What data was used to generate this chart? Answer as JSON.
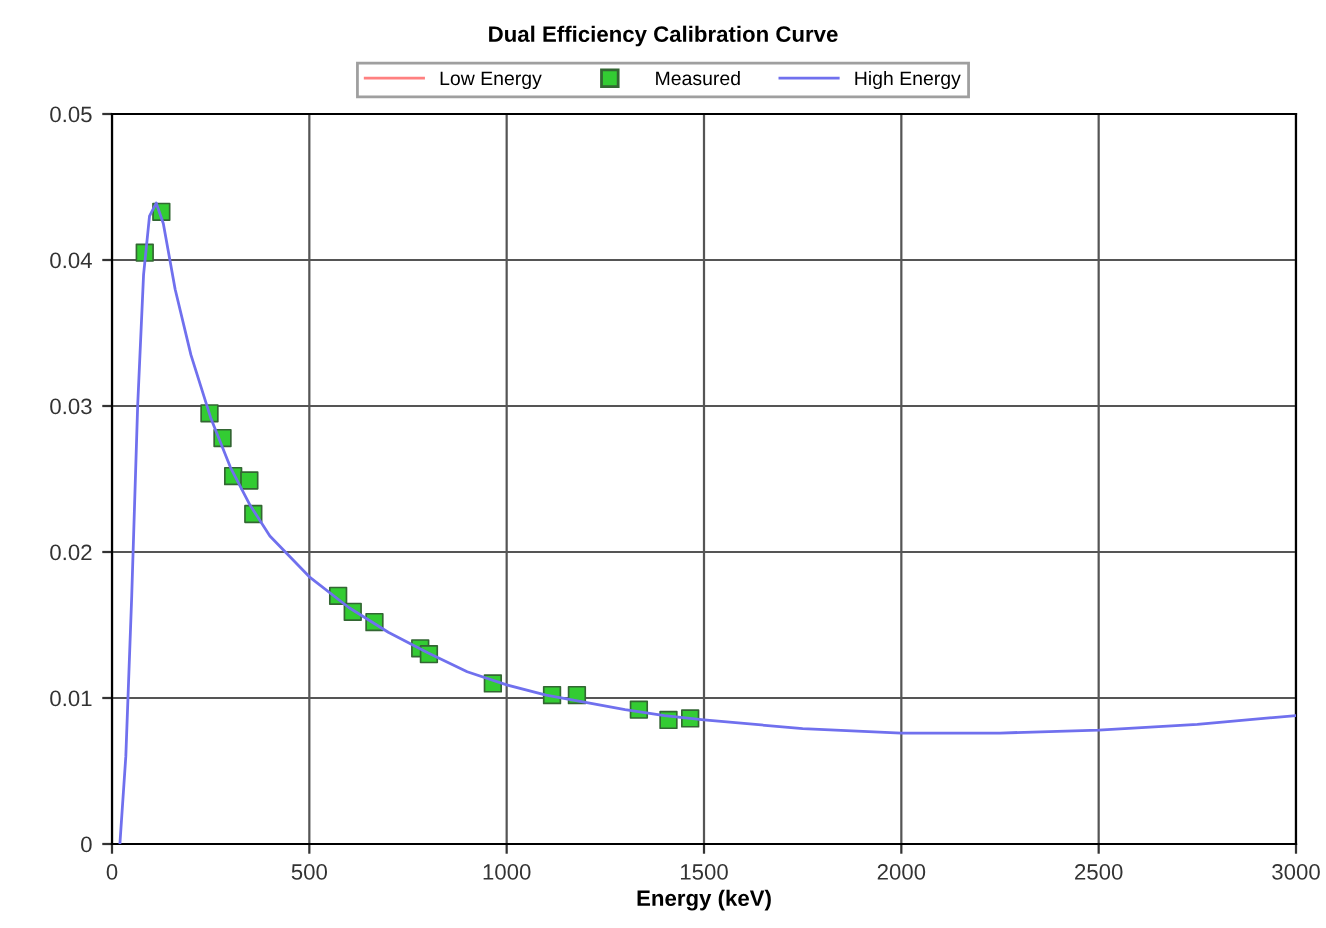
{
  "chart_data": {
    "type": "line",
    "title": "Dual Efficiency Calibration Curve",
    "xlabel": "Energy (keV)",
    "xlim": [
      0,
      3000
    ],
    "xticks": [
      0,
      500,
      1000,
      1500,
      2000,
      2500,
      3000
    ],
    "ylim": [
      0,
      0.05
    ],
    "yticks": [
      0,
      0.01,
      0.02,
      0.03,
      0.04,
      0.05
    ],
    "grid": true,
    "legend": "top",
    "series": [
      {
        "name": "Low Energy",
        "color": "#ff8080"
      },
      {
        "name": "Measured",
        "type": "scatter",
        "marker": "square",
        "color": "#33cc33",
        "x": [
          83,
          125,
          247,
          280,
          307,
          348,
          358,
          573,
          610,
          665,
          781,
          803,
          965,
          1115,
          1178,
          1335,
          1410,
          1465
        ],
        "values": [
          0.0405,
          0.0433,
          0.0295,
          0.0278,
          0.0252,
          0.0249,
          0.0226,
          0.017,
          0.0159,
          0.0152,
          0.0134,
          0.013,
          0.011,
          0.0102,
          0.0102,
          0.0092,
          0.0085,
          0.0086
        ]
      },
      {
        "name": "High Energy",
        "color": "#7070ee",
        "x": [
          20,
          35,
          50,
          65,
          80,
          95,
          112,
          130,
          160,
          200,
          250,
          300,
          350,
          400,
          500,
          600,
          700,
          800,
          900,
          1000,
          1100,
          1200,
          1300,
          1400,
          1500,
          1750,
          2000,
          2250,
          2500,
          2750,
          3000
        ],
        "values": [
          0,
          0.006,
          0.017,
          0.03,
          0.039,
          0.043,
          0.0439,
          0.0425,
          0.038,
          0.0335,
          0.0292,
          0.0258,
          0.0232,
          0.0211,
          0.0183,
          0.0162,
          0.0145,
          0.0131,
          0.0118,
          0.0109,
          0.0102,
          0.0097,
          0.0092,
          0.0088,
          0.0085,
          0.0079,
          0.0076,
          0.0076,
          0.0078,
          0.0082,
          0.0088
        ]
      }
    ]
  }
}
